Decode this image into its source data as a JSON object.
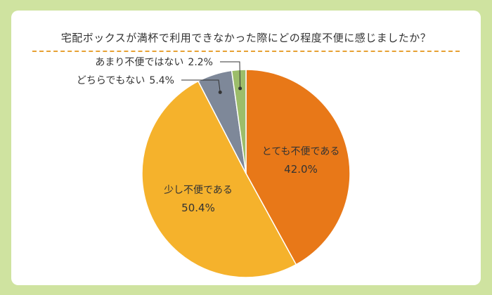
{
  "colors": {
    "background": "#cfe3a0",
    "card": "#ffffff",
    "rule": "#e7a234",
    "text": "#333333"
  },
  "title": "宅配ボックスが満杯で利用できなかった際にどの程度不便に感じましたか？",
  "chart_data": {
    "type": "pie",
    "title": "宅配ボックスが満杯で利用できなかった際にどの程度不便に感じましたか？",
    "unit": "%",
    "start": "12 o'clock",
    "direction": "clockwise",
    "slices": [
      {
        "label": "とても不便である",
        "value": 42.0,
        "value_label": "42.0%",
        "color": "#e87818",
        "label_placement": "inside"
      },
      {
        "label": "少し不便である",
        "value": 50.4,
        "value_label": "50.4%",
        "color": "#f5b22c",
        "label_placement": "inside"
      },
      {
        "label": "どちらでもない",
        "value": 5.4,
        "value_label": "5.4%",
        "color": "#7e8899",
        "label_placement": "outside-leader"
      },
      {
        "label": "あまり不便ではない",
        "value": 2.2,
        "value_label": "2.2%",
        "color": "#9cbd6a",
        "label_placement": "outside-leader"
      }
    ]
  }
}
